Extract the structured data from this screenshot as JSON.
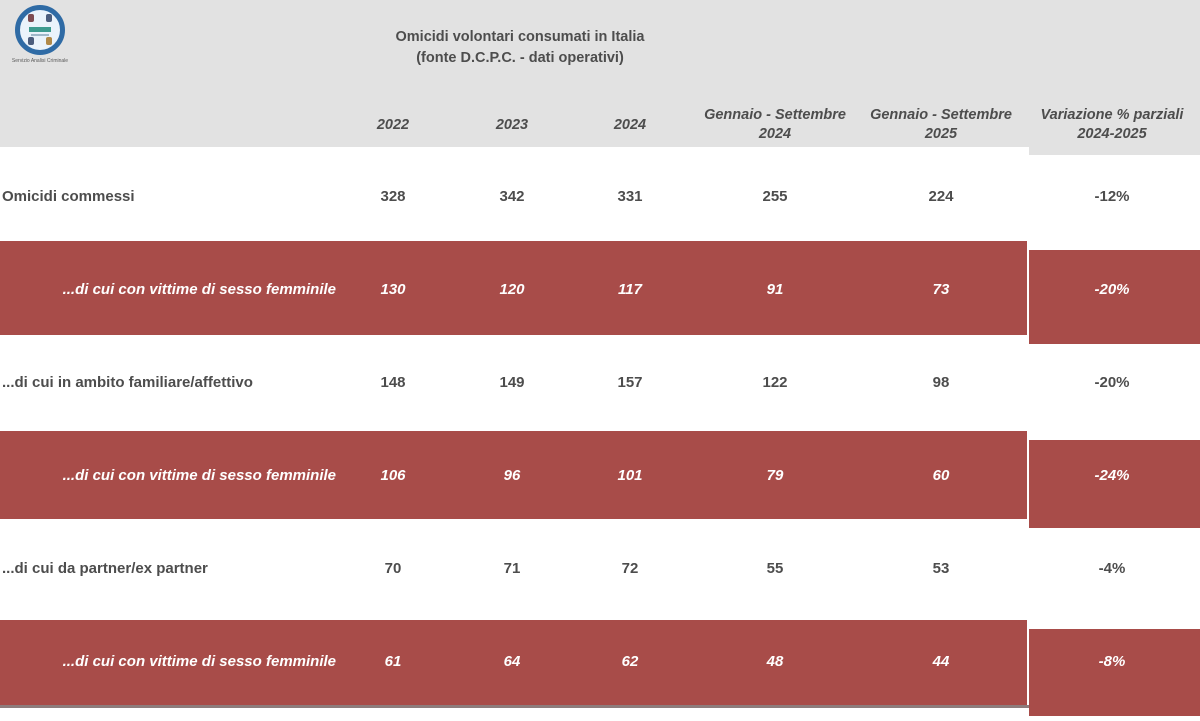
{
  "logo": {
    "caption": "Servizio Analisi Criminale"
  },
  "title": {
    "line1": "Omicidi volontari consumati in Italia",
    "line2": "(fonte D.C.P.C. - dati operativi)"
  },
  "table": {
    "headers": [
      {
        "l1": "2022",
        "l2": ""
      },
      {
        "l1": "2023",
        "l2": ""
      },
      {
        "l1": "2024",
        "l2": ""
      },
      {
        "l1": "Gennaio - Settembre",
        "l2": "2024"
      },
      {
        "l1": "Gennaio - Settembre",
        "l2": "2025"
      },
      {
        "l1": "Variazione % parziali",
        "l2": "2024-2025"
      }
    ],
    "rows": [
      {
        "label": "Omicidi commessi",
        "style": "plain",
        "values": [
          "328",
          "342",
          "331",
          "255",
          "224",
          "-12%"
        ]
      },
      {
        "label": "...di cui con vittime di sesso femminile",
        "style": "red",
        "values": [
          "130",
          "120",
          "117",
          "91",
          "73",
          "-20%"
        ]
      },
      {
        "label": "...di cui in ambito familiare/affettivo",
        "style": "plain",
        "values": [
          "148",
          "149",
          "157",
          "122",
          "98",
          "-20%"
        ]
      },
      {
        "label": "...di cui con vittime di sesso femminile",
        "style": "red",
        "values": [
          "106",
          "96",
          "101",
          "79",
          "60",
          "-24%"
        ]
      },
      {
        "label": "...di cui da partner/ex partner",
        "style": "plain",
        "values": [
          "70",
          "71",
          "72",
          "55",
          "53",
          "-4%"
        ]
      },
      {
        "label": "...di cui con vittime di sesso femminile",
        "style": "red",
        "values": [
          "61",
          "64",
          "62",
          "48",
          "44",
          "-8%"
        ]
      }
    ]
  },
  "colors": {
    "highlight_red": "#a84c49",
    "header_gray": "#e2e2e2",
    "text_dark": "#4d4d4d",
    "text_on_red": "#ffffff",
    "logo_ring_blue": "#2f6ba5"
  },
  "chart_data": {
    "type": "table",
    "title": "Omicidi volontari consumati in Italia (fonte D.C.P.C. - dati operativi)",
    "columns": [
      "2022",
      "2023",
      "2024",
      "Gennaio - Settembre 2024",
      "Gennaio - Settembre 2025",
      "Variazione % parziali 2024-2025"
    ],
    "rows": [
      {
        "label": "Omicidi commessi",
        "highlighted": false,
        "values": [
          328,
          342,
          331,
          255,
          224,
          "-12%"
        ]
      },
      {
        "label": "...di cui con vittime di sesso femminile",
        "highlighted": true,
        "values": [
          130,
          120,
          117,
          91,
          73,
          "-20%"
        ]
      },
      {
        "label": "...di cui in ambito familiare/affettivo",
        "highlighted": false,
        "values": [
          148,
          149,
          157,
          122,
          98,
          "-20%"
        ]
      },
      {
        "label": "...di cui con vittime di sesso femminile",
        "highlighted": true,
        "values": [
          106,
          96,
          101,
          79,
          60,
          "-24%"
        ]
      },
      {
        "label": "...di cui da partner/ex partner",
        "highlighted": false,
        "values": [
          70,
          71,
          72,
          55,
          53,
          "-4%"
        ]
      },
      {
        "label": "...di cui con vittime di sesso femminile",
        "highlighted": true,
        "values": [
          61,
          64,
          62,
          48,
          44,
          "-8%"
        ]
      }
    ]
  }
}
